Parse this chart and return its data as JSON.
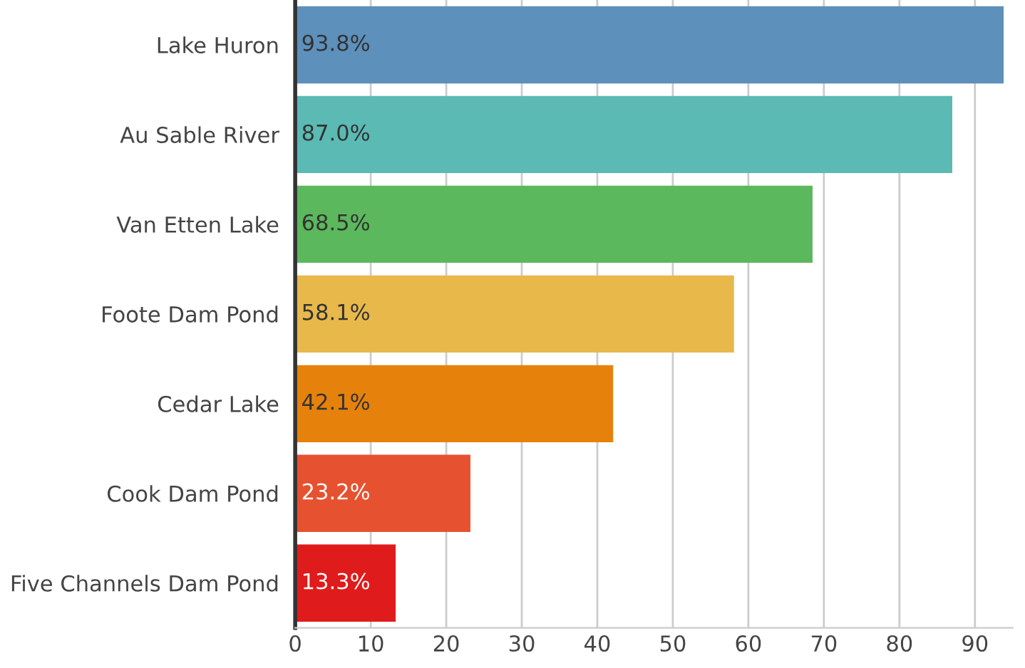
{
  "chart_data": {
    "type": "bar",
    "orientation": "horizontal",
    "categories": [
      "Lake Huron",
      "Au Sable River",
      "Van Etten Lake",
      "Foote Dam Pond",
      "Cedar Lake",
      "Cook Dam Pond",
      "Five Channels Dam Pond"
    ],
    "values": [
      93.8,
      87.0,
      68.5,
      58.1,
      42.1,
      23.2,
      13.3
    ],
    "colors": [
      "#5d90bb",
      "#5bbab4",
      "#5cb85c",
      "#e8b84b",
      "#e6820c",
      "#e6522f",
      "#e01b1b"
    ],
    "value_labels": [
      "93.8%",
      "87.0%",
      "68.5%",
      "58.1%",
      "42.1%",
      "23.2%",
      "13.3%"
    ],
    "xlim": [
      0,
      95
    ],
    "xticks": [
      0,
      10,
      20,
      30,
      40,
      50,
      60,
      70,
      80,
      90
    ],
    "grid": "x"
  }
}
